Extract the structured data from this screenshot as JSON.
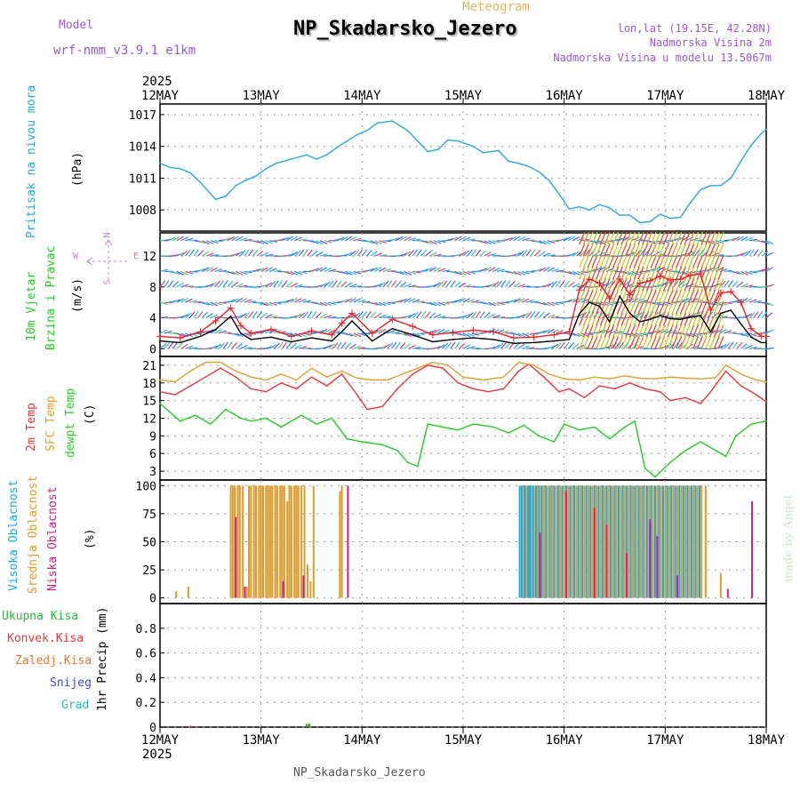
{
  "header": {
    "title": "NP_Skadarsko_Jezero",
    "subtitle": "Meteogram",
    "model_label": "Model",
    "model_name": "wrf-nmm_v3.9.1 e1km",
    "location_coords": "lon,lat (19.15E, 42.28N)",
    "station_elevation": "Nadmorska Visina 2m",
    "model_elevation": "Nadmorska Visina u modelu 13.5067m"
  },
  "footer": {
    "station": "NP_Skadarsko_Jezero",
    "credit": "made by Angel"
  },
  "colors": {
    "pressure": "#2aa7de",
    "wind_speed": "#000000",
    "gust": "#e8202a",
    "temp2m": "#e8363a",
    "sfc_temp": "#e0a030",
    "dewpoint": "#22cc22",
    "high_cloud": "#1aa8e0",
    "mid_cloud": "#e09a2a",
    "low_cloud": "#c81f8a",
    "total_rain": "#22bb33",
    "conv_rain": "#e8363a",
    "freezing_rain": "#ee7733",
    "snow": "#4444dd",
    "hail": "#22bbbb"
  },
  "chart_data": [
    {
      "type": "line",
      "panel": "pressure",
      "ylabel_lines": [
        "Pritisak na nivou mora",
        "(hPa)"
      ],
      "ylim": [
        1006,
        1018
      ],
      "yticks": [
        1008,
        1011,
        1014,
        1017
      ],
      "xlim_days": [
        12,
        18
      ],
      "top_year": "2025",
      "bottom_year": "2025",
      "xtick_labels": [
        "12MAY",
        "13MAY",
        "14MAY",
        "15MAY",
        "16MAY",
        "17MAY",
        "18MAY"
      ],
      "x_unit": "day of May 2025",
      "series": [
        {
          "key": "pressure",
          "x": [
            12.0,
            12.1,
            12.2,
            12.3,
            12.4,
            12.55,
            12.65,
            12.75,
            12.85,
            12.95,
            13.05,
            13.15,
            13.3,
            13.45,
            13.55,
            13.65,
            13.75,
            13.85,
            13.95,
            14.05,
            14.15,
            14.3,
            14.45,
            14.55,
            14.65,
            14.75,
            14.85,
            14.95,
            15.1,
            15.2,
            15.35,
            15.45,
            15.55,
            15.65,
            15.75,
            15.85,
            15.95,
            16.05,
            16.15,
            16.25,
            16.35,
            16.45,
            16.55,
            16.65,
            16.75,
            16.85,
            16.95,
            17.05,
            17.15,
            17.25,
            17.35,
            17.45,
            17.55,
            17.65,
            17.75,
            17.85,
            17.95,
            18.0
          ],
          "y": [
            1012.4,
            1012.0,
            1011.9,
            1011.5,
            1010.6,
            1009.0,
            1009.3,
            1010.3,
            1010.8,
            1011.2,
            1011.9,
            1012.4,
            1012.8,
            1013.2,
            1012.8,
            1013.2,
            1013.9,
            1014.5,
            1015.1,
            1015.5,
            1016.2,
            1016.4,
            1015.5,
            1014.5,
            1013.5,
            1013.7,
            1014.6,
            1014.5,
            1014.0,
            1013.4,
            1013.6,
            1012.6,
            1012.4,
            1012.1,
            1011.6,
            1010.8,
            1009.5,
            1008.1,
            1008.3,
            1008.0,
            1008.5,
            1008.2,
            1007.5,
            1007.5,
            1006.8,
            1006.9,
            1007.6,
            1007.2,
            1007.3,
            1008.7,
            1009.9,
            1010.3,
            1010.3,
            1011.0,
            1012.6,
            1014.1,
            1015.2,
            1015.6
          ]
        }
      ]
    },
    {
      "type": "line",
      "panel": "wind",
      "ylabel_lines": [
        "10m Vjetar",
        "Brzina i Pravac",
        "(m/s)"
      ],
      "compass": {
        "n": "N",
        "s": "S",
        "e": "E",
        "w": "W"
      },
      "ylim": [
        -1,
        15
      ],
      "yticks": [
        0,
        4,
        8,
        12
      ],
      "barb_rows": [
        0,
        2,
        4,
        6,
        8,
        10,
        12,
        14
      ],
      "series": [
        {
          "key": "wind_speed",
          "x": [
            12.0,
            12.2,
            12.4,
            12.55,
            12.7,
            12.8,
            12.9,
            13.1,
            13.3,
            13.5,
            13.7,
            13.8,
            13.9,
            14.1,
            14.3,
            14.5,
            14.7,
            14.9,
            15.1,
            15.3,
            15.5,
            15.7,
            15.9,
            16.05,
            16.15,
            16.25,
            16.35,
            16.45,
            16.55,
            16.65,
            16.75,
            16.85,
            16.95,
            17.05,
            17.15,
            17.25,
            17.35,
            17.45,
            17.55,
            17.65,
            17.75,
            17.85,
            17.95,
            18.0
          ],
          "y": [
            1.0,
            0.8,
            1.6,
            2.5,
            4.2,
            2.0,
            1.2,
            1.5,
            0.9,
            1.4,
            1.0,
            2.2,
            3.6,
            1.0,
            2.6,
            1.8,
            0.9,
            1.2,
            1.4,
            1.2,
            0.7,
            0.8,
            1.0,
            1.2,
            4.5,
            6.0,
            5.5,
            3.5,
            6.8,
            4.6,
            3.5,
            3.8,
            4.3,
            3.9,
            3.8,
            4.1,
            4.3,
            2.2,
            4.6,
            5.0,
            3.2,
            1.5,
            0.8,
            0.8
          ]
        },
        {
          "key": "gust",
          "x": [
            12.0,
            12.2,
            12.4,
            12.55,
            12.7,
            12.8,
            12.9,
            13.1,
            13.3,
            13.5,
            13.7,
            13.8,
            13.9,
            14.1,
            14.3,
            14.5,
            14.7,
            14.9,
            15.1,
            15.3,
            15.5,
            15.7,
            15.9,
            16.05,
            16.15,
            16.25,
            16.35,
            16.45,
            16.55,
            16.65,
            16.75,
            16.85,
            16.95,
            17.05,
            17.15,
            17.25,
            17.35,
            17.45,
            17.55,
            17.65,
            17.75,
            17.85,
            17.95,
            18.0
          ],
          "y": [
            1.6,
            1.4,
            2.2,
            3.6,
            5.3,
            3.0,
            2.0,
            2.5,
            1.6,
            2.3,
            1.8,
            3.3,
            4.6,
            2.0,
            3.8,
            2.9,
            1.8,
            2.1,
            2.4,
            2.2,
            1.4,
            1.5,
            1.8,
            2.2,
            7.6,
            9.0,
            8.5,
            6.5,
            9.0,
            7.0,
            8.5,
            8.8,
            9.4,
            8.9,
            9.0,
            9.5,
            9.7,
            5.0,
            7.2,
            7.4,
            6.0,
            2.6,
            1.6,
            1.6
          ]
        }
      ]
    },
    {
      "type": "line",
      "panel": "temperature",
      "ylabel_lines": [
        "2m Temp",
        "SFC Temp",
        "dewpt Temp",
        "(C)"
      ],
      "ylim": [
        1.5,
        22.5
      ],
      "yticks": [
        3,
        6,
        9,
        12,
        15,
        18,
        21
      ],
      "series": [
        {
          "key": "temp2m",
          "x": [
            12.0,
            12.15,
            12.3,
            12.45,
            12.6,
            12.75,
            12.9,
            13.05,
            13.2,
            13.35,
            13.5,
            13.65,
            13.8,
            13.95,
            14.05,
            14.2,
            14.35,
            14.5,
            14.65,
            14.8,
            14.95,
            15.1,
            15.25,
            15.4,
            15.55,
            15.65,
            15.8,
            15.95,
            16.05,
            16.2,
            16.35,
            16.5,
            16.65,
            16.8,
            16.95,
            17.05,
            17.2,
            17.35,
            17.45,
            17.6,
            17.75,
            17.9,
            18.0
          ],
          "y": [
            16.5,
            16.0,
            17.5,
            19.0,
            20.5,
            19.0,
            17.0,
            16.5,
            18.0,
            17.0,
            19.0,
            17.5,
            19.5,
            16.0,
            13.5,
            14.0,
            17.0,
            19.5,
            21.0,
            20.5,
            18.0,
            17.0,
            16.5,
            17.0,
            20.0,
            21.2,
            19.0,
            16.5,
            17.0,
            15.5,
            17.5,
            17.0,
            18.0,
            17.0,
            16.5,
            15.0,
            15.5,
            14.5,
            16.5,
            20.0,
            17.5,
            16.0,
            14.8
          ]
        },
        {
          "key": "sfc_temp",
          "x": [
            12.0,
            12.15,
            12.3,
            12.45,
            12.6,
            12.75,
            12.9,
            13.05,
            13.2,
            13.35,
            13.5,
            13.65,
            13.8,
            13.95,
            14.1,
            14.25,
            14.4,
            14.55,
            14.7,
            14.85,
            15.0,
            15.2,
            15.4,
            15.55,
            15.7,
            15.85,
            16.0,
            16.15,
            16.3,
            16.45,
            16.6,
            16.75,
            16.9,
            17.05,
            17.2,
            17.35,
            17.5,
            17.6,
            17.75,
            17.9,
            18.0
          ],
          "y": [
            18.5,
            18.2,
            20.0,
            21.5,
            21.5,
            20.0,
            19.0,
            18.5,
            19.5,
            18.5,
            20.5,
            19.0,
            20.0,
            18.8,
            18.5,
            18.5,
            19.5,
            20.5,
            21.5,
            21.0,
            19.0,
            18.5,
            19.0,
            21.5,
            21.0,
            19.5,
            18.7,
            18.5,
            19.0,
            18.7,
            19.2,
            18.8,
            18.7,
            19.0,
            18.8,
            18.7,
            18.9,
            21.0,
            19.5,
            18.5,
            18.2
          ]
        },
        {
          "key": "dewpoint",
          "x": [
            12.0,
            12.1,
            12.2,
            12.35,
            12.5,
            12.65,
            12.8,
            12.9,
            13.05,
            13.2,
            13.4,
            13.55,
            13.7,
            13.85,
            14.0,
            14.2,
            14.35,
            14.45,
            14.55,
            14.65,
            14.8,
            14.95,
            15.1,
            15.3,
            15.45,
            15.6,
            15.75,
            15.9,
            16.0,
            16.15,
            16.3,
            16.45,
            16.6,
            16.7,
            16.8,
            16.9,
            17.05,
            17.2,
            17.35,
            17.5,
            17.6,
            17.7,
            17.85,
            18.0
          ],
          "y": [
            14.5,
            13.0,
            11.5,
            12.5,
            11.0,
            13.5,
            12.0,
            11.5,
            12.0,
            10.5,
            12.5,
            11.0,
            12.0,
            8.5,
            8.0,
            7.5,
            6.5,
            4.5,
            3.8,
            11.0,
            10.5,
            10.0,
            11.0,
            10.5,
            9.5,
            10.8,
            9.0,
            8.0,
            11.0,
            10.0,
            10.5,
            8.5,
            10.5,
            11.5,
            3.5,
            2.0,
            4.5,
            6.5,
            8.0,
            6.5,
            5.5,
            9.0,
            11.0,
            11.5
          ]
        }
      ]
    },
    {
      "type": "bar",
      "panel": "cloud",
      "ylabel_lines": [
        "Visoka Oblacnost",
        "Srednja Oblacnost",
        "Niska Oblacnost",
        "(%)"
      ],
      "ylim": [
        -5,
        105
      ],
      "yticks": [
        0,
        25,
        50,
        75,
        100
      ],
      "series": [
        {
          "key": "mid_cloud",
          "x": [
            12.16,
            12.28,
            12.7,
            12.72,
            12.74,
            12.77,
            12.79,
            12.82,
            12.86,
            12.88,
            12.9,
            12.93,
            12.95,
            12.98,
            13.0,
            13.02,
            13.05,
            13.07,
            13.09,
            13.11,
            13.14,
            13.16,
            13.19,
            13.21,
            13.23,
            13.26,
            13.28,
            13.3,
            13.33,
            13.35,
            13.37,
            13.4,
            13.43,
            13.46,
            13.49,
            13.52,
            13.78,
            13.8,
            15.6,
            15.62,
            15.65,
            15.67,
            15.7,
            15.73,
            15.77,
            15.8,
            15.84,
            15.88,
            15.92,
            15.96,
            16.0,
            16.04,
            16.08,
            16.12,
            16.16,
            16.2,
            16.24,
            16.28,
            16.32,
            16.36,
            16.4,
            16.44,
            16.48,
            16.52,
            16.56,
            16.6,
            16.64,
            16.68,
            16.72,
            16.76,
            16.8,
            16.84,
            16.88,
            16.92,
            16.96,
            17.0,
            17.04,
            17.08,
            17.12,
            17.16,
            17.2,
            17.24,
            17.28,
            17.32,
            17.36,
            17.4,
            17.55
          ],
          "y": [
            6,
            10,
            100,
            100,
            100,
            100,
            100,
            100,
            10,
            100,
            100,
            100,
            100,
            100,
            100,
            100,
            100,
            100,
            100,
            100,
            100,
            100,
            100,
            100,
            100,
            86,
            100,
            100,
            100,
            100,
            100,
            100,
            100,
            30,
            15,
            100,
            95,
            100,
            100,
            100,
            100,
            100,
            100,
            100,
            100,
            100,
            100,
            100,
            100,
            100,
            100,
            100,
            100,
            100,
            100,
            100,
            100,
            100,
            100,
            100,
            100,
            100,
            100,
            100,
            100,
            100,
            100,
            100,
            100,
            100,
            100,
            100,
            100,
            100,
            100,
            100,
            100,
            100,
            100,
            100,
            100,
            100,
            100,
            100,
            100,
            100,
            22
          ]
        },
        {
          "key": "high_cloud",
          "x": [
            15.56,
            15.58,
            15.61,
            15.64,
            15.66,
            15.69,
            15.72,
            15.75,
            15.78,
            15.82,
            15.86,
            15.9,
            15.94,
            15.98,
            16.02,
            16.06,
            16.1,
            16.14,
            16.18,
            16.22,
            16.26,
            16.3,
            16.34,
            16.38,
            16.42,
            16.46,
            16.5,
            16.54,
            16.58,
            16.62,
            16.66,
            16.7,
            16.74,
            16.78,
            16.82,
            16.86,
            16.9,
            16.94,
            16.98,
            17.02,
            17.06,
            17.1,
            17.14,
            17.18,
            17.22,
            17.26,
            17.3,
            17.34
          ],
          "y": [
            100,
            100,
            100,
            100,
            100,
            100,
            100,
            100,
            100,
            100,
            100,
            100,
            100,
            100,
            100,
            100,
            100,
            100,
            100,
            100,
            100,
            100,
            100,
            100,
            100,
            100,
            100,
            100,
            100,
            100,
            100,
            100,
            100,
            100,
            100,
            100,
            100,
            100,
            100,
            100,
            100,
            100,
            100,
            100,
            100,
            100,
            100,
            100
          ]
        },
        {
          "key": "low_cloud",
          "x": [
            12.75,
            12.84,
            13.22,
            13.42,
            13.86,
            15.76,
            16.02,
            16.3,
            16.42,
            16.62,
            16.85,
            16.92,
            17.12,
            17.62,
            17.86
          ],
          "y": [
            72,
            10,
            15,
            20,
            100,
            58,
            95,
            80,
            65,
            40,
            70,
            55,
            20,
            8,
            86
          ]
        }
      ]
    },
    {
      "type": "bar",
      "panel": "precipitation",
      "ylabel_lines": [
        "1hr Precip (mm)"
      ],
      "legend_order": [
        "total_rain",
        "conv_rain",
        "freezing_rain",
        "snow",
        "hail"
      ],
      "legend_labels": {
        "total_rain": "Ukupna Kisa",
        "conv_rain": "Konvek.Kisa",
        "freezing_rain": "Zaledj.Kisa",
        "snow": "Snijeg",
        "hail": "Grad"
      },
      "ylim": [
        0,
        1
      ],
      "yticks": [
        0,
        0.2,
        0.4,
        0.6,
        0.8
      ],
      "series": [
        {
          "key": "total_rain",
          "x": [
            12.3,
            13.45,
            13.48
          ],
          "y": [
            0.01,
            0.03,
            0.03
          ]
        },
        {
          "key": "conv_rain",
          "x": [
            12.3,
            13.47
          ],
          "y": [
            0.01,
            0.02
          ]
        }
      ]
    }
  ]
}
